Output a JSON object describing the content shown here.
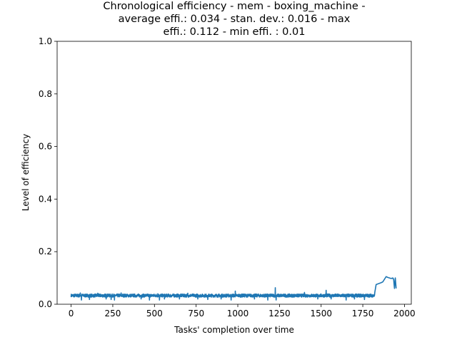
{
  "chart_data": {
    "type": "line",
    "title_lines": [
      "Chronological efficiency - mem - boxing_machine -",
      "average effi.: 0.034 - stan. dev.: 0.016 - max",
      "effi.: 0.112 - min effi. : 0.01"
    ],
    "xlabel": "Tasks' completion over time",
    "ylabel": "Level of efficiency",
    "xlim": [
      -84,
      2041
    ],
    "ylim": [
      0,
      1.0
    ],
    "xticks": [
      0,
      250,
      500,
      750,
      1000,
      1250,
      1500,
      1750,
      2000
    ],
    "xtick_labels": [
      "0",
      "250",
      "500",
      "750",
      "1000",
      "1250",
      "1500",
      "1750",
      "2000"
    ],
    "yticks": [
      0.0,
      0.2,
      0.4,
      0.6,
      0.8,
      1.0
    ],
    "ytick_labels": [
      "0.0",
      "0.2",
      "0.4",
      "0.6",
      "0.8",
      "1.0"
    ],
    "grid": false,
    "legend": "none",
    "series": [
      {
        "color": "#1f77b4",
        "x": [
          0,
          1820,
          1822,
          1830,
          1860,
          1870,
          1880,
          1890,
          1900,
          1910,
          1920,
          1930,
          1935,
          1940,
          1945,
          1950
        ],
        "y": [
          0.033,
          0.033,
          0.045,
          0.075,
          0.082,
          0.085,
          0.095,
          0.105,
          0.102,
          0.1,
          0.098,
          0.1,
          0.095,
          0.06,
          0.1,
          0.06
        ],
        "baseline_noise": {
          "count": 1820,
          "base": 0.033,
          "spikes": [
            {
              "x": 55,
              "y": 0.043
            },
            {
              "x": 62,
              "y": 0.016
            },
            {
              "x": 110,
              "y": 0.018
            },
            {
              "x": 160,
              "y": 0.042
            },
            {
              "x": 210,
              "y": 0.02
            },
            {
              "x": 240,
              "y": 0.018
            },
            {
              "x": 260,
              "y": 0.016
            },
            {
              "x": 300,
              "y": 0.043
            },
            {
              "x": 420,
              "y": 0.02
            },
            {
              "x": 470,
              "y": 0.016
            },
            {
              "x": 520,
              "y": 0.04
            },
            {
              "x": 530,
              "y": 0.016
            },
            {
              "x": 560,
              "y": 0.02
            },
            {
              "x": 650,
              "y": 0.02
            },
            {
              "x": 700,
              "y": 0.042
            },
            {
              "x": 760,
              "y": 0.02
            },
            {
              "x": 820,
              "y": 0.018
            },
            {
              "x": 900,
              "y": 0.02
            },
            {
              "x": 960,
              "y": 0.016
            },
            {
              "x": 985,
              "y": 0.05
            },
            {
              "x": 1100,
              "y": 0.02
            },
            {
              "x": 1180,
              "y": 0.016
            },
            {
              "x": 1225,
              "y": 0.063
            },
            {
              "x": 1230,
              "y": 0.016
            },
            {
              "x": 1290,
              "y": 0.03
            },
            {
              "x": 1330,
              "y": 0.03
            },
            {
              "x": 1400,
              "y": 0.045
            },
            {
              "x": 1480,
              "y": 0.02
            },
            {
              "x": 1530,
              "y": 0.053
            },
            {
              "x": 1560,
              "y": 0.02
            },
            {
              "x": 1650,
              "y": 0.016
            },
            {
              "x": 1700,
              "y": 0.02
            },
            {
              "x": 1760,
              "y": 0.018
            }
          ]
        }
      }
    ]
  }
}
